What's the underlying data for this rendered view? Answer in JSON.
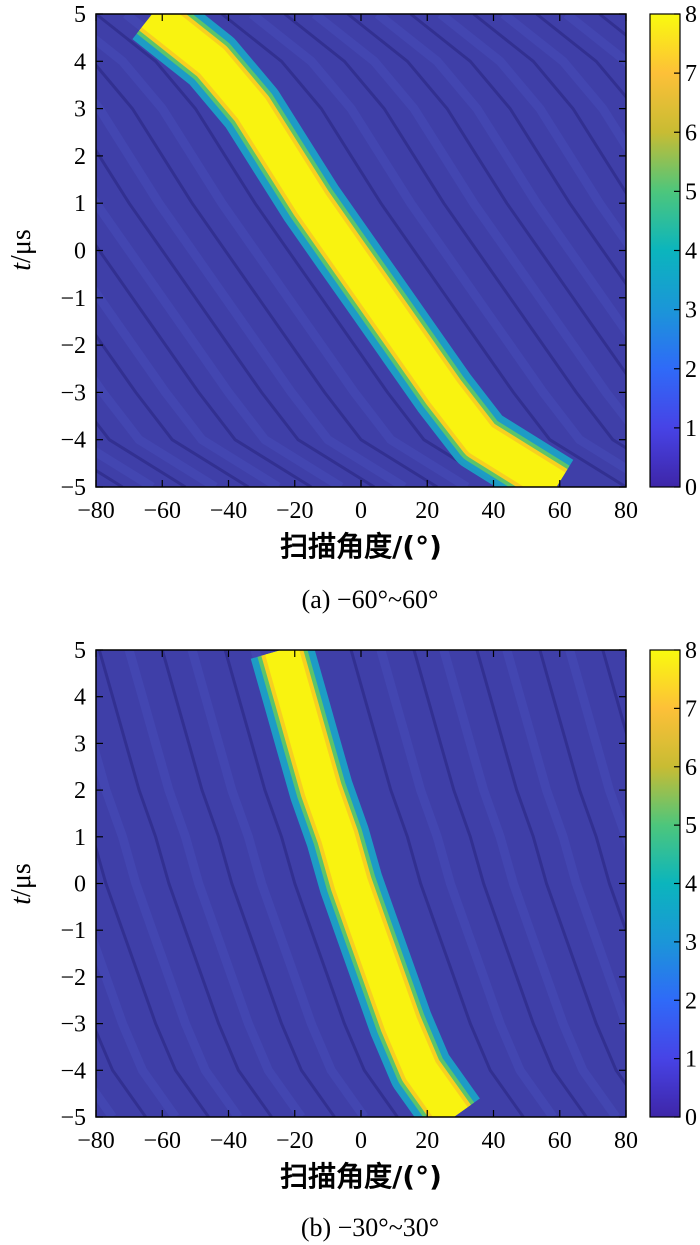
{
  "chart_data": [
    {
      "type": "heatmap",
      "caption": "(a) −60°~60°",
      "xlabel": "扫描角度/(°)",
      "ylabel_italic": "t",
      "ylabel_rest": "/μs",
      "xlim": [
        -80,
        80
      ],
      "ylim": [
        -5,
        5
      ],
      "x_ticks": [
        -80,
        -60,
        -40,
        -20,
        0,
        20,
        40,
        60,
        80
      ],
      "y_ticks": [
        -5,
        -4,
        -3,
        -2,
        -1,
        0,
        1,
        2,
        3,
        4,
        5
      ],
      "colorbar": {
        "range": [
          0,
          8
        ],
        "ticks": [
          0,
          1,
          2,
          3,
          4,
          5,
          6,
          7,
          8
        ]
      },
      "scan_range_deg": [
        -60,
        60
      ],
      "peak_ridge": [
        {
          "t": 5,
          "angle": -63
        },
        {
          "t": 4,
          "angle": -45
        },
        {
          "t": 3,
          "angle": -33
        },
        {
          "t": 2,
          "angle": -24
        },
        {
          "t": 1,
          "angle": -15
        },
        {
          "t": 0,
          "angle": -5
        },
        {
          "t": -1,
          "angle": 5
        },
        {
          "t": -2,
          "angle": 15
        },
        {
          "t": -3,
          "angle": 25
        },
        {
          "t": -4,
          "angle": 36
        },
        {
          "t": -5,
          "angle": 59
        }
      ]
    },
    {
      "type": "heatmap",
      "caption": "(b) −30°~30°",
      "xlabel": "扫描角度/(°)",
      "ylabel_italic": "t",
      "ylabel_rest": "/μs",
      "xlim": [
        -80,
        80
      ],
      "ylim": [
        -5,
        5
      ],
      "x_ticks": [
        -80,
        -60,
        -40,
        -20,
        0,
        20,
        40,
        60,
        80
      ],
      "y_ticks": [
        -5,
        -4,
        -3,
        -2,
        -1,
        0,
        1,
        2,
        3,
        4,
        5
      ],
      "colorbar": {
        "range": [
          0,
          8
        ],
        "ticks": [
          0,
          1,
          2,
          3,
          4,
          5,
          6,
          7,
          8
        ]
      },
      "scan_range_deg": [
        -30,
        30
      ],
      "peak_ridge": [
        {
          "t": 5,
          "angle": -24
        },
        {
          "t": 4,
          "angle": -20
        },
        {
          "t": 3,
          "angle": -16
        },
        {
          "t": 2,
          "angle": -12
        },
        {
          "t": 1,
          "angle": -7
        },
        {
          "t": 0,
          "angle": -3
        },
        {
          "t": -1,
          "angle": 2
        },
        {
          "t": -2,
          "angle": 7
        },
        {
          "t": -3,
          "angle": 12
        },
        {
          "t": -4,
          "angle": 18
        },
        {
          "t": -5,
          "angle": 28
        }
      ]
    }
  ]
}
